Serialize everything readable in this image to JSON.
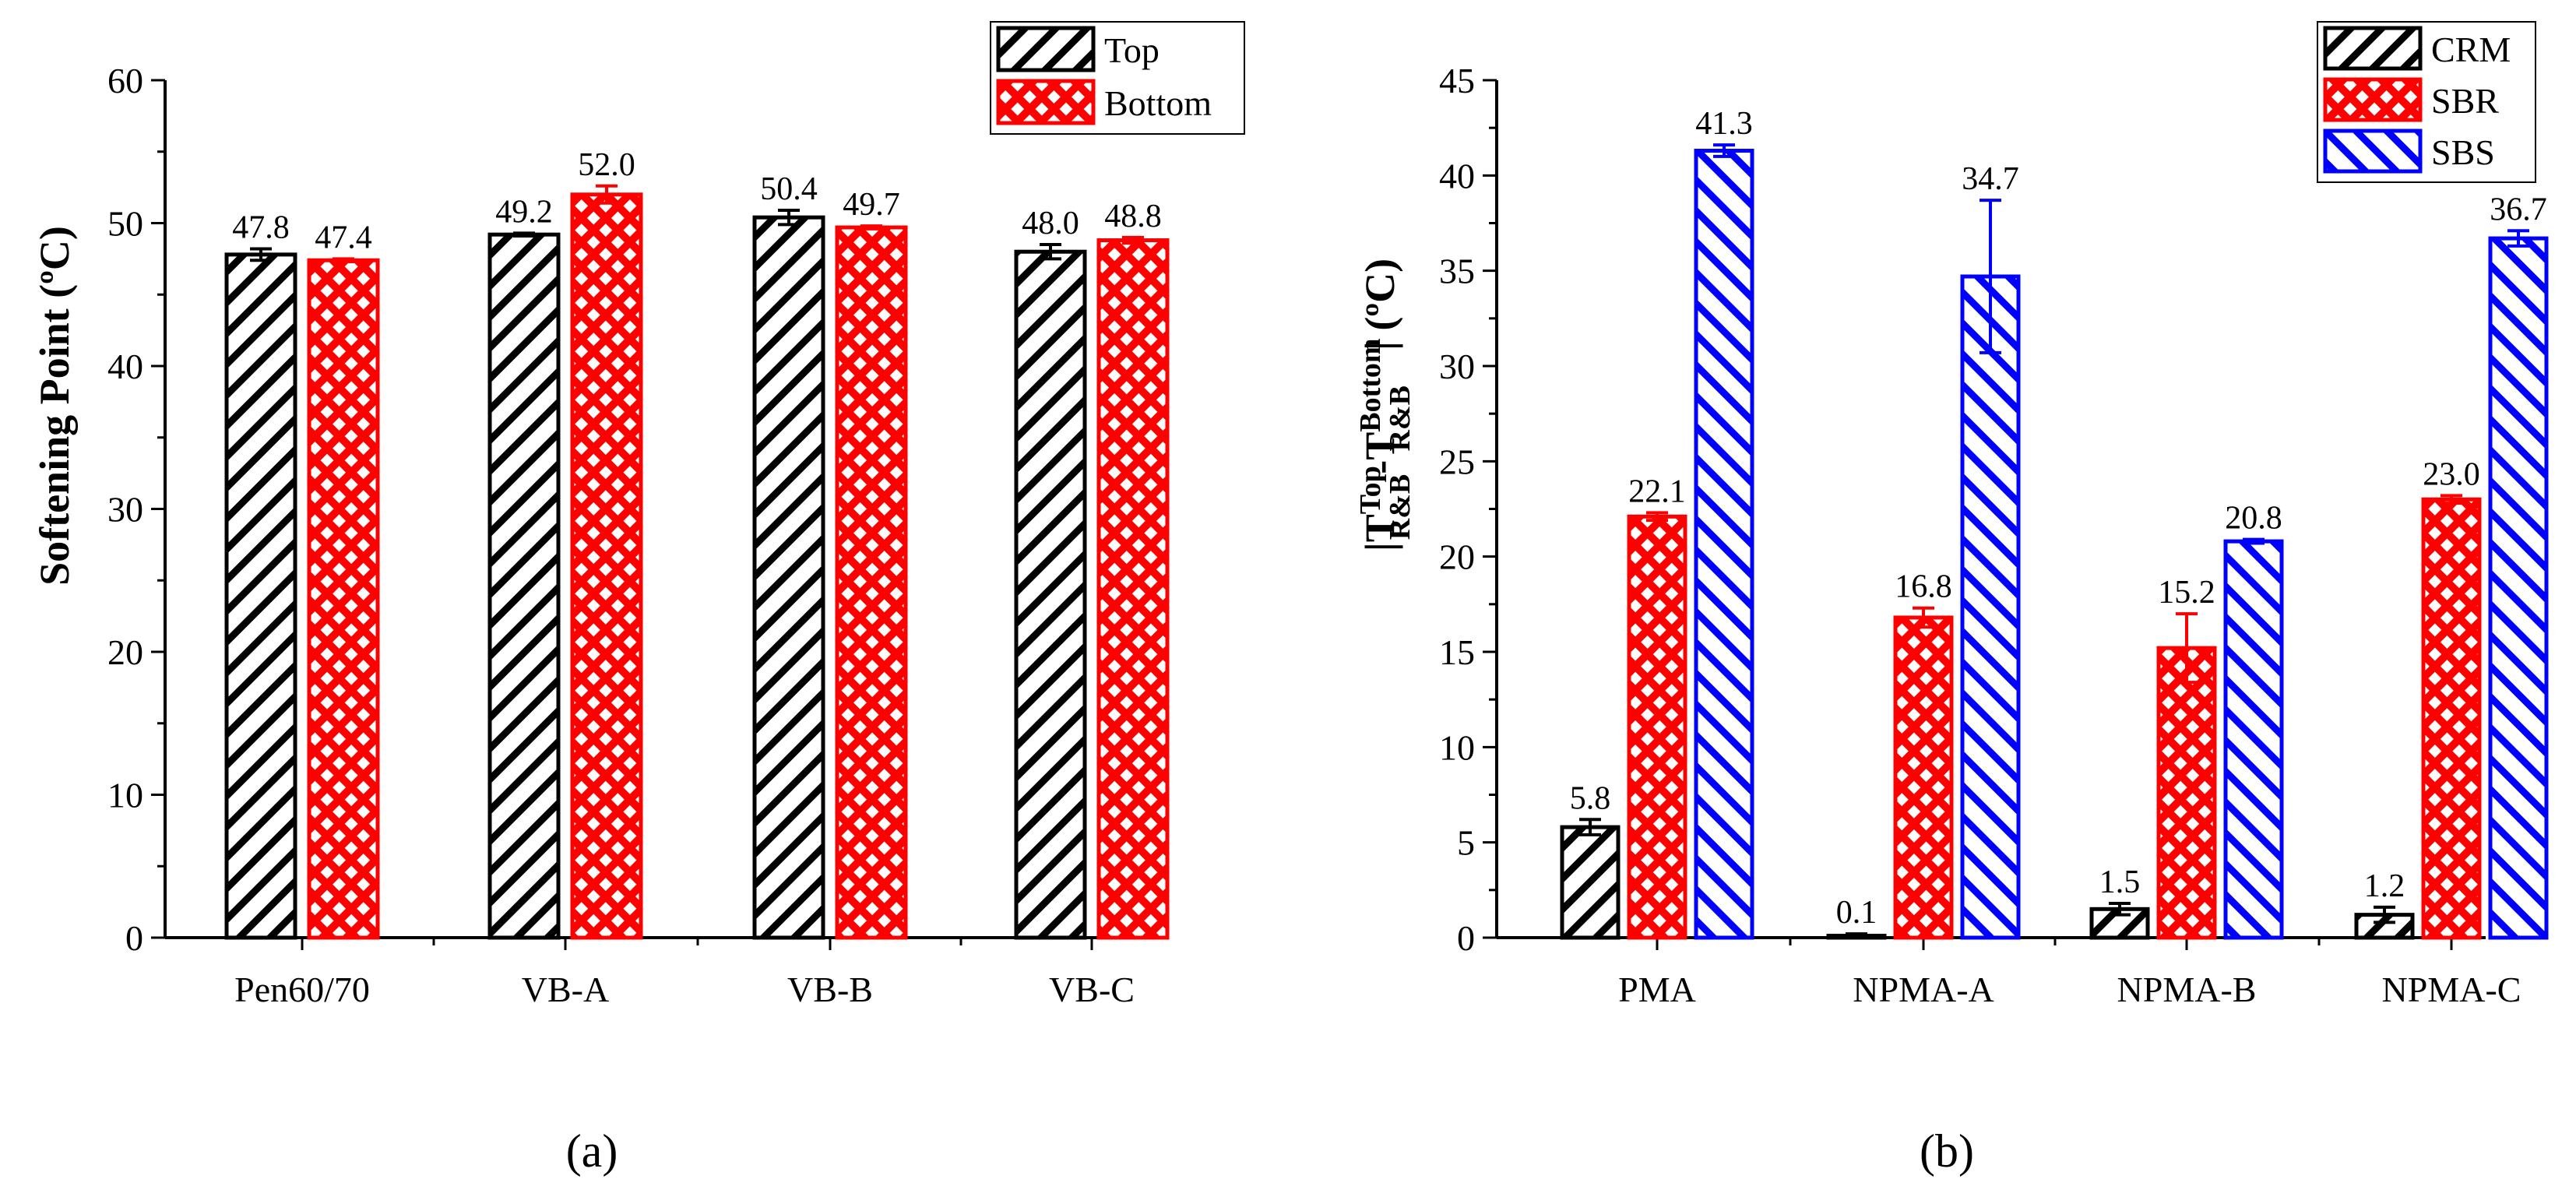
{
  "chart_data": [
    {
      "panel_label": "(a)",
      "type": "bar",
      "ylabel": "Softening Point (ºC)",
      "xlabel": "",
      "ylim": [
        0,
        60
      ],
      "yticks": [
        0,
        10,
        20,
        30,
        40,
        50,
        60
      ],
      "y_minor_step": 5,
      "categories": [
        "Pen60/70",
        "VB-A",
        "VB-B",
        "VB-C"
      ],
      "legend_position": "top-right",
      "series": [
        {
          "name": "Top",
          "color": "#000000",
          "pattern": "diag-right",
          "values": [
            47.8,
            49.2,
            50.4,
            48.0
          ],
          "errors": [
            0.4,
            0.1,
            0.5,
            0.5
          ],
          "labels": [
            "47.8",
            "49.2",
            "50.4",
            "48.0"
          ]
        },
        {
          "name": "Bottom",
          "color": "#ff0000",
          "pattern": "crosshatch",
          "values": [
            47.4,
            52.0,
            49.7,
            48.8
          ],
          "errors": [
            0.1,
            0.6,
            0.1,
            0.2
          ],
          "labels": [
            "47.4",
            "52.0",
            "49.7",
            "48.8"
          ]
        }
      ]
    },
    {
      "panel_label": "(b)",
      "type": "bar",
      "ylabel_parts": {
        "open": "|T",
        "sup1": "Top",
        "sub1": "R&B",
        "mid": "-T",
        "sup2": "Bottom",
        "sub2": "R&B",
        "close": "| (ºC)"
      },
      "xlabel": "",
      "ylim": [
        0,
        45
      ],
      "yticks": [
        0,
        5,
        10,
        15,
        20,
        25,
        30,
        35,
        40,
        45
      ],
      "y_minor_step": 2.5,
      "categories": [
        "PMA",
        "NPMA-A",
        "NPMA-B",
        "NPMA-C"
      ],
      "legend_position": "top-right",
      "series": [
        {
          "name": "CRM",
          "color": "#000000",
          "pattern": "diag-right",
          "values": [
            5.8,
            0.1,
            1.5,
            1.2
          ],
          "errors": [
            0.4,
            0.1,
            0.3,
            0.4
          ],
          "labels": [
            "5.8",
            "0.1",
            "1.5",
            "1.2"
          ]
        },
        {
          "name": "SBR",
          "color": "#ff0000",
          "pattern": "crosshatch",
          "values": [
            22.1,
            16.8,
            15.2,
            23.0
          ],
          "errors": [
            0.2,
            0.5,
            1.8,
            0.2
          ],
          "labels": [
            "22.1",
            "16.8",
            "15.2",
            "23.0"
          ]
        },
        {
          "name": "SBS",
          "color": "#0000ff",
          "pattern": "diag-left",
          "values": [
            41.3,
            34.7,
            20.8,
            36.7
          ],
          "errors": [
            0.3,
            4.0,
            0.1,
            0.4
          ],
          "labels": [
            "41.3",
            "34.7",
            "20.8",
            "36.7"
          ]
        }
      ]
    }
  ]
}
